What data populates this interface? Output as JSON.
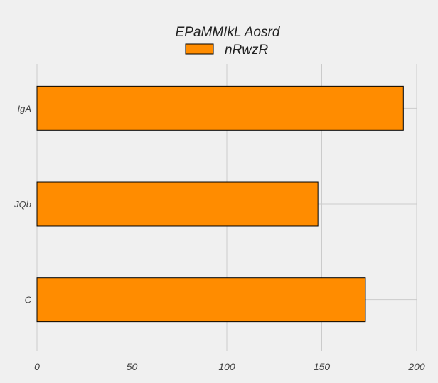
{
  "chart_data": {
    "type": "bar",
    "orientation": "horizontal",
    "title": "EPaMMIkL Aosrd",
    "categories": [
      "IgA",
      "JQb",
      "C"
    ],
    "series": [
      {
        "name": "nRwzR",
        "values": [
          193,
          148,
          173
        ],
        "color": "#ff8c00"
      }
    ],
    "xlim": [
      0,
      200
    ],
    "xticks": [
      0,
      50,
      100,
      150,
      200
    ],
    "xtick_labels": [
      "0",
      "50",
      "100",
      "150",
      "200"
    ],
    "xlabel": "",
    "ylabel": "",
    "grid": true,
    "legend": "top-center",
    "colors": {
      "background": "#f0f0f0",
      "grid": "#cbcbcb",
      "bar_edge": "#000000"
    }
  }
}
